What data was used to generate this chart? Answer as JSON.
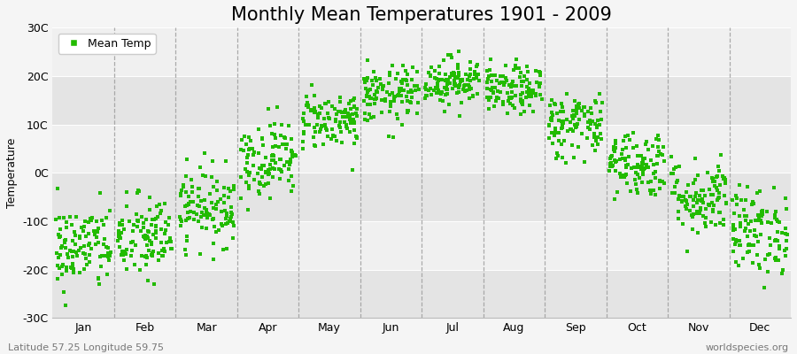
{
  "title": "Monthly Mean Temperatures 1901 - 2009",
  "ylabel": "Temperature",
  "xlabel": "",
  "legend_label": "Mean Temp",
  "dot_color": "#22bb00",
  "background_color": "#f5f5f5",
  "plot_bg_color": "#ebebeb",
  "band_color_light": "#f0f0f0",
  "band_color_dark": "#e4e4e4",
  "ylim": [
    -30,
    30
  ],
  "yticks": [
    -30,
    -20,
    -10,
    0,
    10,
    20,
    30
  ],
  "ytick_labels": [
    "-30C",
    "-20C",
    "-10C",
    "0C",
    "10C",
    "20C",
    "30C"
  ],
  "months": [
    "Jan",
    "Feb",
    "Mar",
    "Apr",
    "May",
    "Jun",
    "Jul",
    "Aug",
    "Sep",
    "Oct",
    "Nov",
    "Dec"
  ],
  "n_years": 109,
  "seed": 42,
  "monthly_mean_temps": [
    -15.5,
    -13.5,
    -7,
    3,
    11,
    16,
    19,
    17,
    10,
    2,
    -5,
    -12
  ],
  "monthly_std_temps": [
    4.5,
    4.5,
    4,
    4,
    3,
    3,
    2.5,
    2.5,
    3.5,
    3.5,
    4,
    4.5
  ],
  "title_fontsize": 15,
  "label_fontsize": 9,
  "tick_fontsize": 9,
  "watermark_left": "Latitude 57.25 Longitude 59.75",
  "watermark_right": "worldspecies.org",
  "marker_size": 9,
  "dashed_color": "#999999"
}
